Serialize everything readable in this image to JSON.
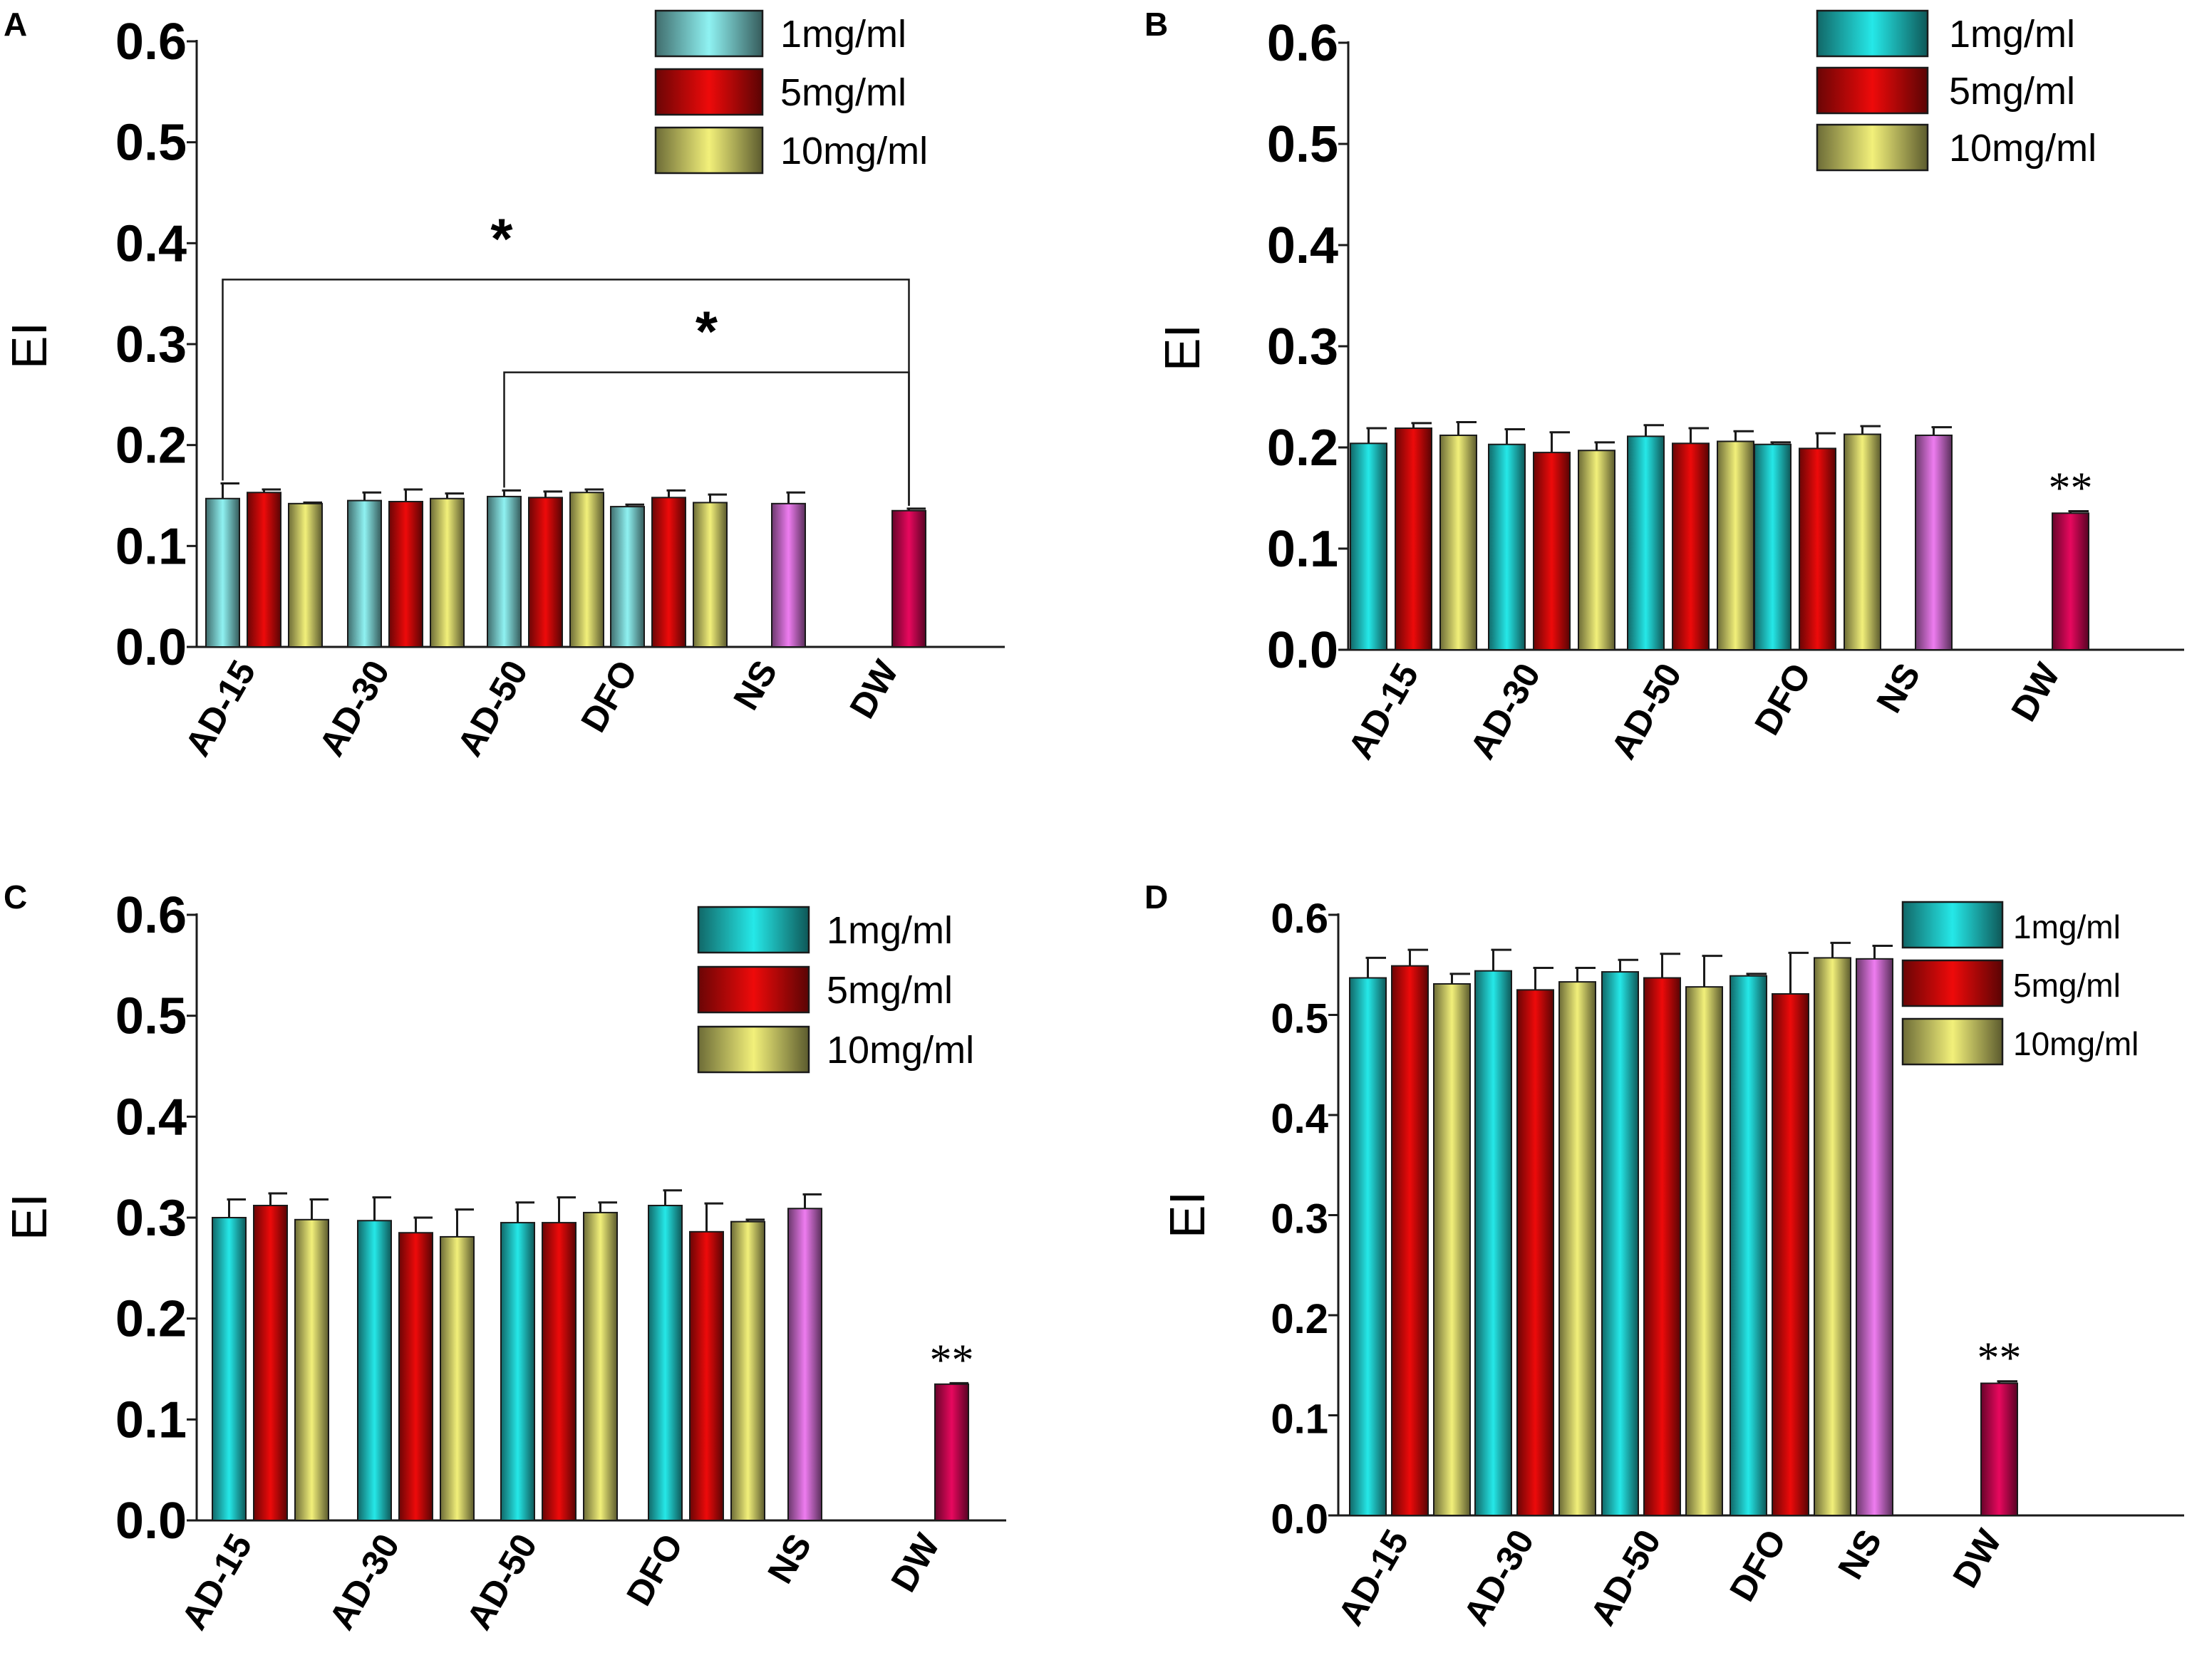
{
  "colors": {
    "dose1": "#25e8e8",
    "dose1_light": "#8ff2f2",
    "dose5": "#ee0a0a",
    "dose10": "#f2f07a",
    "ns": "#ee7cf0",
    "dw": "#e8085e"
  },
  "chart_data": [
    {
      "panel": "A",
      "type": "bar",
      "ylabel": "EI",
      "ylim": [
        0,
        0.6
      ],
      "yticks": [
        "0.0",
        "0.1",
        "0.2",
        "0.3",
        "0.4",
        "0.5",
        "0.6"
      ],
      "legend": [
        "1mg/ml",
        "5mg/ml",
        "10mg/ml"
      ],
      "categories": [
        "AD-15",
        "AD-30",
        "AD-50",
        "DFO",
        "NS",
        "DW"
      ],
      "groups": [
        {
          "category": "AD-15",
          "values": [
            0.147,
            0.153,
            0.142
          ],
          "errors": [
            0.015,
            0.003,
            0.001
          ]
        },
        {
          "category": "AD-30",
          "values": [
            0.145,
            0.144,
            0.147
          ],
          "errors": [
            0.008,
            0.012,
            0.005
          ]
        },
        {
          "category": "AD-50",
          "values": [
            0.149,
            0.148,
            0.153
          ],
          "errors": [
            0.006,
            0.006,
            0.003
          ]
        },
        {
          "category": "DFO",
          "values": [
            0.139,
            0.148,
            0.143
          ],
          "errors": [
            0.002,
            0.007,
            0.008
          ]
        },
        {
          "category": "NS",
          "values": [
            0.142
          ],
          "errors": [
            0.011
          ]
        },
        {
          "category": "DW",
          "values": [
            0.135
          ],
          "errors": [
            0.002
          ]
        }
      ],
      "annotations": [
        {
          "label": "*",
          "from": "AD-15",
          "to": "DW",
          "level": 0.364
        },
        {
          "label": "*",
          "from": "AD-50",
          "to": "DW",
          "level": 0.272
        }
      ]
    },
    {
      "panel": "B",
      "type": "bar",
      "ylabel": "EI",
      "ylim": [
        0,
        0.6
      ],
      "yticks": [
        "0.0",
        "0.1",
        "0.2",
        "0.3",
        "0.4",
        "0.5",
        "0.6"
      ],
      "legend": [
        "1mg/ml",
        "5mg/ml",
        "10mg/ml"
      ],
      "categories": [
        "AD-15",
        "AD-30",
        "AD-50",
        "DFO",
        "NS",
        "DW"
      ],
      "groups": [
        {
          "category": "AD-15",
          "values": [
            0.204,
            0.219,
            0.212
          ],
          "errors": [
            0.015,
            0.005,
            0.013
          ]
        },
        {
          "category": "AD-30",
          "values": [
            0.203,
            0.195,
            0.197
          ],
          "errors": [
            0.015,
            0.02,
            0.008
          ]
        },
        {
          "category": "AD-50",
          "values": [
            0.211,
            0.204,
            0.206
          ],
          "errors": [
            0.011,
            0.015,
            0.01
          ]
        },
        {
          "category": "DFO",
          "values": [
            0.203,
            0.199,
            0.213
          ],
          "errors": [
            0.002,
            0.015,
            0.008
          ]
        },
        {
          "category": "NS",
          "values": [
            0.212
          ],
          "errors": [
            0.008
          ]
        },
        {
          "category": "DW",
          "values": [
            0.135
          ],
          "errors": [
            0.002
          ]
        }
      ],
      "annotations": [
        {
          "label": "**",
          "over": "DW"
        }
      ]
    },
    {
      "panel": "C",
      "type": "bar",
      "ylabel": "EI",
      "ylim": [
        0,
        0.6
      ],
      "yticks": [
        "0.0",
        "0.1",
        "0.2",
        "0.3",
        "0.4",
        "0.5",
        "0.6"
      ],
      "legend": [
        "1mg/ml",
        "5mg/ml",
        "10mg/ml"
      ],
      "categories": [
        "AD-15",
        "AD-30",
        "AD-50",
        "DFO",
        "NS",
        "DW"
      ],
      "groups": [
        {
          "category": "AD-15",
          "values": [
            0.3,
            0.312,
            0.298
          ],
          "errors": [
            0.018,
            0.012,
            0.02
          ]
        },
        {
          "category": "AD-30",
          "values": [
            0.297,
            0.285,
            0.281
          ],
          "errors": [
            0.023,
            0.015,
            0.027
          ]
        },
        {
          "category": "AD-50",
          "values": [
            0.295,
            0.295,
            0.305
          ],
          "errors": [
            0.02,
            0.025,
            0.01
          ]
        },
        {
          "category": "DFO",
          "values": [
            0.312,
            0.286,
            0.296
          ],
          "errors": [
            0.015,
            0.028,
            0.002
          ]
        },
        {
          "category": "NS",
          "values": [
            0.309
          ],
          "errors": [
            0.014
          ]
        },
        {
          "category": "DW",
          "values": [
            0.135
          ],
          "errors": [
            0.001
          ]
        }
      ],
      "annotations": [
        {
          "label": "**",
          "over": "DW"
        }
      ]
    },
    {
      "panel": "D",
      "type": "bar",
      "ylabel": "EI",
      "ylim": [
        0,
        0.6
      ],
      "yticks": [
        "0.0",
        "0.1",
        "0.2",
        "0.3",
        "0.4",
        "0.5",
        "0.6"
      ],
      "legend": [
        "1mg/ml",
        "5mg/ml",
        "10mg/ml"
      ],
      "categories": [
        "AD-15",
        "AD-30",
        "AD-50",
        "DFO",
        "NS",
        "DW"
      ],
      "groups": [
        {
          "category": "AD-15",
          "values": [
            0.537,
            0.549,
            0.531
          ],
          "errors": [
            0.02,
            0.016,
            0.01
          ]
        },
        {
          "category": "AD-30",
          "values": [
            0.544,
            0.525,
            0.533
          ],
          "errors": [
            0.021,
            0.022,
            0.014
          ]
        },
        {
          "category": "AD-50",
          "values": [
            0.543,
            0.537,
            0.528
          ],
          "errors": [
            0.012,
            0.024,
            0.031
          ]
        },
        {
          "category": "DFO",
          "values": [
            0.539,
            0.521,
            0.557
          ],
          "errors": [
            0.002,
            0.041,
            0.015
          ]
        },
        {
          "category": "NS",
          "values": [
            0.556
          ],
          "errors": [
            0.013
          ]
        },
        {
          "category": "DW",
          "values": [
            0.132
          ],
          "errors": [
            0.002
          ]
        }
      ],
      "annotations": [
        {
          "label": "**",
          "over": "DW"
        }
      ]
    }
  ]
}
